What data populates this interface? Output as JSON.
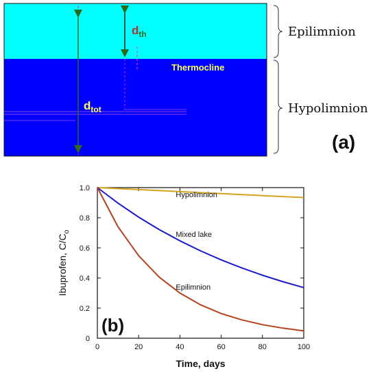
{
  "diagram": {
    "labels": {
      "epilimnion": "Epilimnion",
      "hypolimnion": "Hypolimnion",
      "thermocline": "Thermocline",
      "d_th_main": "d",
      "d_th_sub": "th",
      "d_tot_main": "d",
      "d_tot_sub": "tot",
      "panel": "(a)"
    },
    "colors": {
      "epilimnion_water": "#00ffff",
      "hypolimnion_water": "#0000ff",
      "thermocline_text": "#ffff55",
      "d_th_text": "#b5312f",
      "d_tot_text": "#ffff55",
      "arrow": "#2a6a1a",
      "pink_dash": "#ff33cc"
    }
  },
  "chart_data": {
    "type": "line",
    "panel_label": "(b)",
    "xlabel": "Time, days",
    "ylabel_main": "Ibuprofen, C/C",
    "ylabel_sub": "o",
    "xlim": [
      0,
      100
    ],
    "ylim": [
      0,
      1.0
    ],
    "x_ticks": [
      0,
      20,
      40,
      60,
      80,
      100
    ],
    "y_ticks": [
      0,
      0.2,
      0.4,
      0.6,
      0.8,
      1.0
    ],
    "x_tick_labels": [
      "0",
      "20",
      "40",
      "60",
      "80",
      "100"
    ],
    "y_tick_labels": [
      "0",
      "0.2",
      "0.4",
      "0.6",
      "0.8",
      "1.0"
    ],
    "grid": false,
    "series": [
      {
        "name": "Hypolimnion",
        "color": "#d4a41f",
        "x": [
          0,
          20,
          40,
          60,
          80,
          100
        ],
        "y": [
          1.0,
          0.987,
          0.973,
          0.96,
          0.947,
          0.934
        ]
      },
      {
        "name": "Mixed lake",
        "color": "#1a1acc",
        "x": [
          0,
          10,
          20,
          30,
          40,
          50,
          60,
          70,
          80,
          90,
          100
        ],
        "y": [
          1.0,
          0.897,
          0.804,
          0.721,
          0.647,
          0.58,
          0.52,
          0.467,
          0.418,
          0.375,
          0.336
        ]
      },
      {
        "name": "Epilimnion",
        "color": "#b5401c",
        "x": [
          0,
          10,
          20,
          30,
          40,
          50,
          60,
          70,
          80,
          90,
          100
        ],
        "y": [
          1.0,
          0.74,
          0.548,
          0.405,
          0.3,
          0.222,
          0.164,
          0.122,
          0.09,
          0.067,
          0.049
        ]
      }
    ],
    "annotations": [
      {
        "text": "Hypolimnion",
        "x": 38,
        "y": 0.955
      },
      {
        "text": "Mixed lake",
        "x": 38,
        "y": 0.69
      },
      {
        "text": "Epilimnion",
        "x": 38,
        "y": 0.34
      }
    ]
  }
}
